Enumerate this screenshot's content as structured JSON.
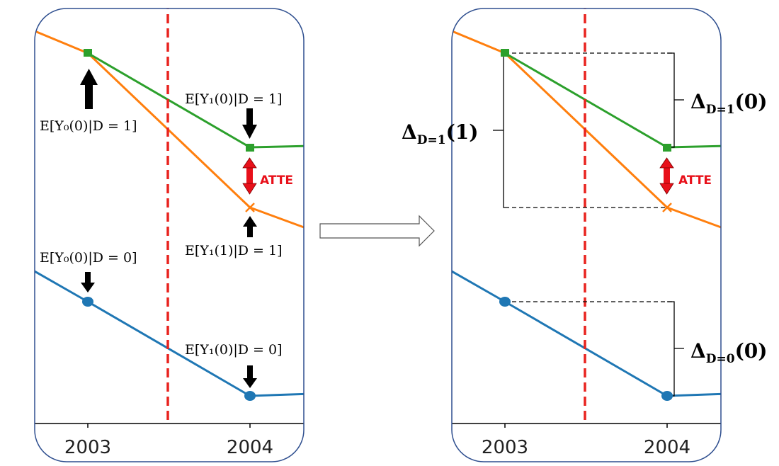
{
  "colors": {
    "treated_observed": "#2ca02c",
    "treated_counterfactual": "#ff7f0e",
    "control": "#1f77b4",
    "treatment_line": "#e8231f",
    "atte_arrow": "#e8101a",
    "frame": "#2f4f8f"
  },
  "left_panel": {
    "x_ticks": [
      "2003",
      "2004"
    ],
    "labels": {
      "y0_d1": "E[Y₀(0)|D = 1]",
      "y1_0_d1": "E[Y₁(0)|D = 1]",
      "y1_1_d1": "E[Y₁(1)|D = 1]",
      "y0_d0": "E[Y₀(0)|D = 0]",
      "y1_0_d0": "E[Y₁(0)|D = 0]",
      "atte": "ATTE"
    }
  },
  "right_panel": {
    "x_ticks": [
      "2003",
      "2004"
    ],
    "labels": {
      "delta_d1_1": {
        "main": "Δ",
        "sub": "D=1",
        "arg": "(1)"
      },
      "delta_d1_0": {
        "main": "Δ",
        "sub": "D=1",
        "arg": "(0)"
      },
      "delta_d0_0": {
        "main": "Δ",
        "sub": "D=0",
        "arg": "(0)"
      },
      "atte": "ATTE"
    }
  }
}
